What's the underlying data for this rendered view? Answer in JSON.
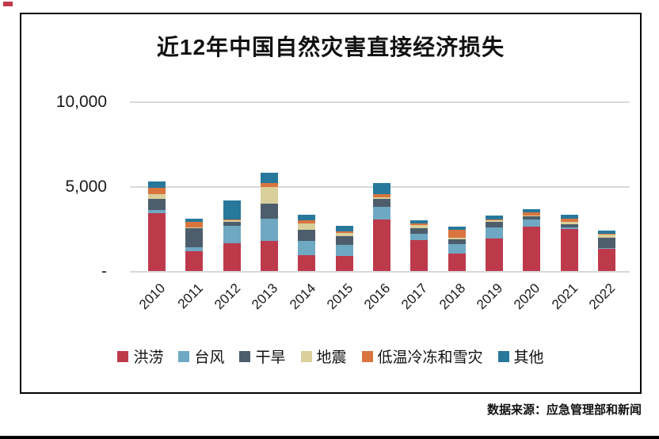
{
  "footer": {
    "source": "数据来源：应急管理部和新闻"
  },
  "chart_data": {
    "type": "bar",
    "stacked": true,
    "title": "近12年中国自然灾害直接经济损失",
    "xlabel": "",
    "ylabel": "",
    "ylim": [
      0,
      10000
    ],
    "grid": true,
    "legend_position": "bottom",
    "y_ticks": [
      {
        "label": "10,000",
        "value": 10000
      },
      {
        "label": "5,000",
        "value": 5000
      },
      {
        "label": "-",
        "value": 0
      }
    ],
    "categories": [
      "2010",
      "2011",
      "2012",
      "2013",
      "2014",
      "2015",
      "2016",
      "2017",
      "2018",
      "2019",
      "2020",
      "2021",
      "2022"
    ],
    "series": [
      {
        "name": "洪涝",
        "color": "#bd3a4b",
        "values": [
          3450,
          1200,
          1660,
          1820,
          960,
          920,
          3080,
          1850,
          1050,
          1950,
          2660,
          2520,
          1330
        ]
      },
      {
        "name": "台风",
        "color": "#6fa8c3",
        "values": [
          200,
          240,
          1030,
          1300,
          830,
          660,
          750,
          360,
          560,
          630,
          390,
          80,
          50
        ]
      },
      {
        "name": "干旱",
        "color": "#4d5d6b",
        "values": [
          650,
          1100,
          220,
          890,
          670,
          520,
          470,
          360,
          300,
          340,
          240,
          190,
          600
        ]
      },
      {
        "name": "地震",
        "color": "#d8cf9b",
        "values": [
          270,
          60,
          120,
          990,
          380,
          160,
          60,
          160,
          80,
          120,
          20,
          160,
          230
        ]
      },
      {
        "name": "低温冷冻和雪灾",
        "color": "#d9743f",
        "values": [
          350,
          320,
          30,
          230,
          200,
          110,
          230,
          110,
          470,
          30,
          200,
          160,
          30
        ]
      },
      {
        "name": "其他",
        "color": "#27789b",
        "values": [
          420,
          180,
          1120,
          580,
          320,
          330,
          620,
          200,
          200,
          230,
          190,
          230,
          180
        ]
      }
    ],
    "totals": [
      5340,
      3100,
      4180,
      5810,
      3360,
      2700,
      5210,
      3040,
      2660,
      3300,
      3700,
      3340,
      2420
    ]
  }
}
